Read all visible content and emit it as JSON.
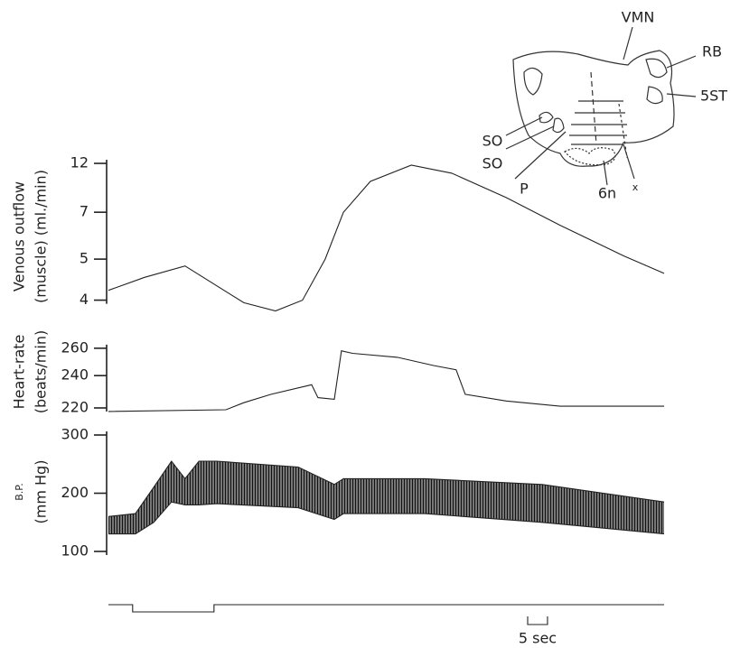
{
  "chart_data": [
    {
      "type": "line",
      "ylabel": [
        "Venous outflow",
        "(muscle) (ml./min)"
      ],
      "yscale": "reciprocal",
      "ylim": [
        3.7,
        12.5
      ],
      "yticks": [
        4,
        5,
        7,
        12
      ],
      "xlim": [
        0,
        140
      ],
      "color": "#222222",
      "x": [
        0,
        9.1,
        19.3,
        27.3,
        34.1,
        42.1,
        48.9,
        54.6,
        59.2,
        66.0,
        76.3,
        86.5,
        100.2,
        113.8,
        129.8,
        140
      ],
      "values": [
        4.2,
        4.5,
        4.8,
        4.3,
        3.95,
        3.8,
        4.0,
        5.0,
        7.0,
        9.5,
        11.7,
        10.5,
        8.0,
        6.3,
        5.1,
        4.6
      ]
    },
    {
      "type": "line",
      "ylabel": [
        "Heart-rate",
        "(beats/min)"
      ],
      "yscale": "reciprocal",
      "ylim": [
        215,
        265
      ],
      "yticks": [
        220,
        240,
        260
      ],
      "xlim": [
        0,
        140
      ],
      "color": "#222222",
      "x": [
        0,
        29.6,
        34.1,
        41.0,
        51.2,
        52.8,
        56.9,
        58.7,
        61.5,
        72.8,
        81.9,
        87.6,
        89.9,
        100.2,
        113.8,
        140
      ],
      "values": [
        218,
        219,
        223,
        228,
        234,
        226,
        225,
        258,
        256,
        253,
        247,
        244,
        228,
        224,
        221,
        221
      ]
    },
    {
      "type": "range",
      "ylabel": [
        "B.P.",
        "(mm Hg)"
      ],
      "yscale": "linear",
      "ylim": [
        100,
        300
      ],
      "yticks": [
        100,
        200,
        300
      ],
      "xlim": [
        0,
        140
      ],
      "color": "#333333",
      "x": [
        0,
        6.8,
        11.4,
        15.9,
        19.3,
        22.8,
        27.3,
        47.8,
        56.9,
        59.2,
        79.7,
        109.3,
        140
      ],
      "series": [
        {
          "values": [
            160,
            165,
            210,
            255,
            225,
            255,
            255,
            245,
            215,
            225,
            225,
            215,
            185
          ]
        },
        {
          "values": [
            130,
            130,
            150,
            185,
            180,
            180,
            182,
            175,
            155,
            165,
            165,
            150,
            130
          ]
        }
      ],
      "stimulus": [
        6.1,
        26.6
      ],
      "scale_bar": {
        "value": 5,
        "label": "5 sec"
      }
    }
  ],
  "diagram": {
    "labels": [
      "VMN",
      "RB",
      "5ST",
      "SO",
      "SO",
      "P",
      "6n",
      "x"
    ]
  }
}
